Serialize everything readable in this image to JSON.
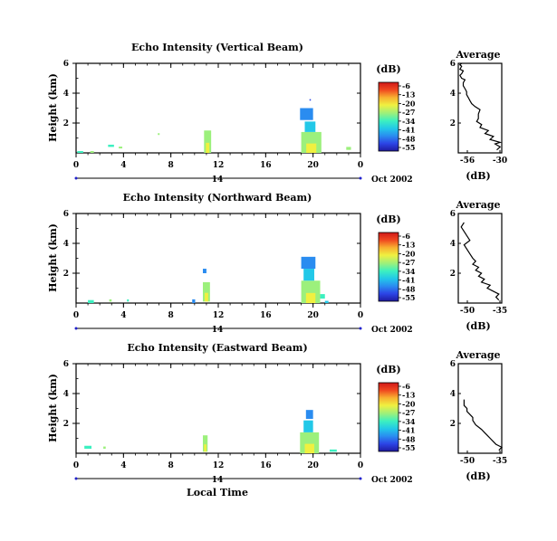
{
  "chart_data": {
    "type": "heatmap",
    "date_label": "Oct 2002",
    "day_label": "14",
    "xlabel": "Local Time",
    "ylabel": "Height (km)",
    "xlim": [
      0,
      24
    ],
    "ylim": [
      0,
      6
    ],
    "x_ticks": [
      "0",
      "4",
      "8",
      "12",
      "16",
      "20",
      "0"
    ],
    "y_ticks": [
      "6",
      "4",
      "2"
    ],
    "colorbar": {
      "label": "(dB)",
      "ticks": [
        "-6",
        "-13",
        "-20",
        "-27",
        "-34",
        "-41",
        "-48",
        "-55"
      ],
      "range": [
        -55,
        -6
      ],
      "colors": [
        "#1e1aa0",
        "#2c44e6",
        "#2a8cf0",
        "#22c8e8",
        "#3cf0c0",
        "#9cf07c",
        "#f0f040",
        "#f8b030",
        "#f04820",
        "#d01818"
      ]
    },
    "panels": [
      {
        "title": "Echo Intensity (Vertical Beam)",
        "avg": {
          "title": "Average",
          "xlabel": "(dB)",
          "x_ticks": [
            "-56",
            "-30"
          ],
          "xlim": [
            -56,
            -30
          ],
          "y_ticks": [
            "6",
            "4",
            "2"
          ],
          "x": [
            -33,
            -31,
            -34,
            -31,
            -37,
            -35,
            -40,
            -38,
            -43,
            -42,
            -45,
            -44,
            -44,
            -43,
            -46,
            -48,
            -49,
            -50,
            -51,
            -51,
            -52,
            -53,
            -53,
            -52,
            -54,
            -55,
            -54,
            -53,
            -55,
            -54,
            -55,
            -54
          ],
          "y": [
            0.2,
            0.4,
            0.6,
            0.7,
            0.9,
            1.1,
            1.3,
            1.5,
            1.7,
            1.9,
            2.1,
            2.3,
            2.6,
            2.9,
            3.1,
            3.3,
            3.5,
            3.7,
            3.9,
            4.1,
            4.3,
            4.5,
            4.7,
            4.9,
            5.0,
            5.2,
            5.3,
            5.5,
            5.6,
            5.8,
            5.9,
            6.0
          ]
        },
        "echo_cells": [
          {
            "x": 0.1,
            "y": 0.0,
            "w": 0.5,
            "h": 0.12,
            "level": 0.45
          },
          {
            "x": 1.2,
            "y": 0.0,
            "w": 0.3,
            "h": 0.12,
            "level": 0.5
          },
          {
            "x": 2.7,
            "y": 0.4,
            "w": 0.5,
            "h": 0.15,
            "level": 0.42
          },
          {
            "x": 3.6,
            "y": 0.3,
            "w": 0.3,
            "h": 0.12,
            "level": 0.5
          },
          {
            "x": 6.9,
            "y": 1.2,
            "w": 0.15,
            "h": 0.12,
            "level": 0.5
          },
          {
            "x": 10.8,
            "y": 0.0,
            "w": 0.6,
            "h": 1.5,
            "level": 0.55
          },
          {
            "x": 19.0,
            "y": 0.0,
            "w": 1.7,
            "h": 1.4,
            "level": 0.6
          },
          {
            "x": 19.3,
            "y": 1.4,
            "w": 0.9,
            "h": 0.7,
            "level": 0.3
          },
          {
            "x": 18.9,
            "y": 2.2,
            "w": 1.1,
            "h": 0.8,
            "level": 0.2
          },
          {
            "x": 19.7,
            "y": 3.5,
            "w": 0.1,
            "h": 0.1,
            "level": 0.1
          },
          {
            "x": 22.8,
            "y": 0.2,
            "w": 0.4,
            "h": 0.2,
            "level": 0.5
          }
        ]
      },
      {
        "title": "Echo Intensity (Northward Beam)",
        "avg": {
          "title": "Average",
          "xlabel": "(dB)",
          "x_ticks": [
            "-50",
            "-35"
          ],
          "xlim": [
            -50,
            -35
          ],
          "y_ticks": [
            "6",
            "4",
            "2"
          ],
          "x": [
            -36,
            -37,
            -36,
            -38,
            -40,
            -39,
            -42,
            -41,
            -43,
            -42,
            -44,
            -43,
            -45,
            -44,
            -45,
            -46,
            -47,
            -48,
            -46,
            -47,
            -48,
            -49,
            -48
          ],
          "y": [
            0.2,
            0.4,
            0.6,
            0.8,
            1.0,
            1.2,
            1.4,
            1.6,
            1.8,
            2.0,
            2.2,
            2.4,
            2.6,
            2.8,
            3.0,
            3.3,
            3.6,
            3.9,
            4.2,
            4.5,
            4.8,
            5.1,
            5.4
          ]
        },
        "echo_cells": [
          {
            "x": 1.0,
            "y": 0.0,
            "w": 0.5,
            "h": 0.2,
            "level": 0.42
          },
          {
            "x": 2.8,
            "y": 0.1,
            "w": 0.2,
            "h": 0.15,
            "level": 0.5
          },
          {
            "x": 4.3,
            "y": 0.1,
            "w": 0.15,
            "h": 0.15,
            "level": 0.4
          },
          {
            "x": 9.8,
            "y": 0.0,
            "w": 0.25,
            "h": 0.25,
            "level": 0.25
          },
          {
            "x": 10.7,
            "y": 0.1,
            "w": 0.6,
            "h": 1.3,
            "level": 0.55
          },
          {
            "x": 10.7,
            "y": 2.0,
            "w": 0.3,
            "h": 0.3,
            "level": 0.2
          },
          {
            "x": 19.0,
            "y": 0.0,
            "w": 1.6,
            "h": 1.5,
            "level": 0.6
          },
          {
            "x": 19.2,
            "y": 1.5,
            "w": 0.9,
            "h": 0.8,
            "level": 0.3
          },
          {
            "x": 19.0,
            "y": 2.3,
            "w": 1.2,
            "h": 0.8,
            "level": 0.2
          },
          {
            "x": 20.6,
            "y": 0.3,
            "w": 0.4,
            "h": 0.3,
            "level": 0.4
          },
          {
            "x": 21.0,
            "y": 0.0,
            "w": 0.3,
            "h": 0.15,
            "level": 0.3
          }
        ]
      },
      {
        "title": "Echo Intensity (Eastward Beam)",
        "avg": {
          "title": "Average",
          "xlabel": "(dB)",
          "x_ticks": [
            "-50",
            "-35"
          ],
          "xlim": [
            -50,
            -35
          ],
          "y_ticks": [
            "6",
            "4",
            "2"
          ],
          "x": [
            -36,
            -35,
            -37,
            -38,
            -39,
            -40,
            -41,
            -42,
            -44,
            -45,
            -45,
            -46,
            -47,
            -47,
            -48,
            -48,
            -48
          ],
          "y": [
            0.2,
            0.4,
            0.6,
            0.8,
            1.0,
            1.2,
            1.4,
            1.6,
            1.9,
            2.2,
            2.4,
            2.6,
            2.8,
            3.0,
            3.2,
            3.4,
            3.6
          ]
        },
        "echo_cells": [
          {
            "x": 0.7,
            "y": 0.3,
            "w": 0.6,
            "h": 0.2,
            "level": 0.4
          },
          {
            "x": 2.3,
            "y": 0.3,
            "w": 0.2,
            "h": 0.15,
            "level": 0.5
          },
          {
            "x": 10.7,
            "y": 0.1,
            "w": 0.4,
            "h": 1.1,
            "level": 0.5
          },
          {
            "x": 18.9,
            "y": 0.0,
            "w": 1.6,
            "h": 1.4,
            "level": 0.6
          },
          {
            "x": 19.2,
            "y": 1.4,
            "w": 0.8,
            "h": 0.8,
            "level": 0.35
          },
          {
            "x": 19.4,
            "y": 2.3,
            "w": 0.6,
            "h": 0.6,
            "level": 0.25
          },
          {
            "x": 21.4,
            "y": 0.1,
            "w": 0.6,
            "h": 0.15,
            "level": 0.4
          }
        ]
      }
    ]
  }
}
